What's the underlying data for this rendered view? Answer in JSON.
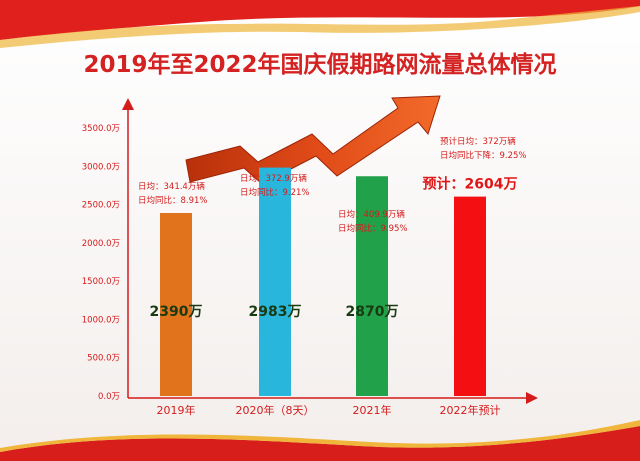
{
  "chart_data": {
    "type": "bar",
    "title": "2019年至2022年国庆假期路网流量总体情况",
    "categories": [
      "2019年",
      "2020年（8天）",
      "2021年",
      "2022年预计"
    ],
    "values": [
      2390,
      2983,
      2870,
      2604
    ],
    "value_labels": [
      "2390万",
      "2983万",
      "2870万",
      "预计：2604万"
    ],
    "colors": [
      "#e0731c",
      "#29b6dd",
      "#21a14a",
      "#f30f12"
    ],
    "ylim": [
      0,
      3500
    ],
    "yticks": [
      "0.0万",
      "500.0万",
      "1000.0万",
      "1500.0万",
      "2000.0万",
      "2500.0万",
      "3000.0万",
      "3500.0万"
    ],
    "grid": false,
    "annotations": [
      [
        "日均：341.4万辆",
        "日均同比：8.91%"
      ],
      [
        "日均：372.9万辆",
        "日均同比：9.21%"
      ],
      [
        "日均：409.9万辆",
        "日均同比：9.95%"
      ],
      [
        "预计日均：372万辆",
        "日均同比下降：9.25%"
      ]
    ]
  }
}
